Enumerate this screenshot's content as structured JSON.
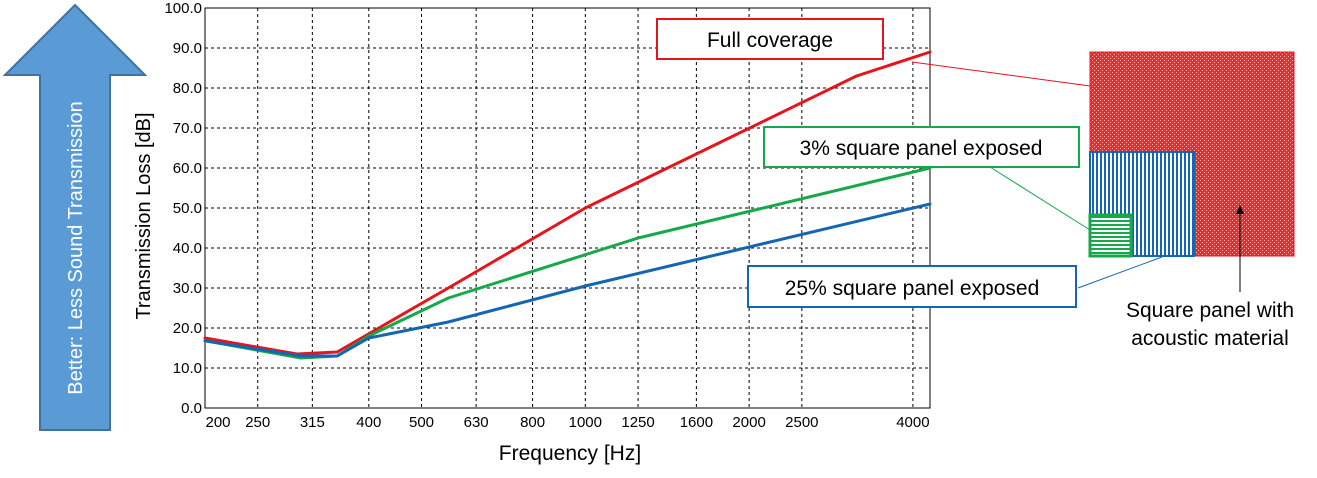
{
  "chart_data": {
    "type": "line",
    "title": "",
    "xlabel": "Frequency [Hz]",
    "ylabel": "Transmission Loss [dB]",
    "x_scale": "log",
    "xlim": [
      200,
      4300
    ],
    "ylim": [
      0,
      100
    ],
    "grid": true,
    "x_ticks": [
      "200",
      "250",
      "315",
      "400",
      "500",
      "630",
      "800",
      "1000",
      "1250",
      "1600",
      "2000",
      "2500",
      "4000"
    ],
    "y_ticks": [
      "0.0",
      "10.0",
      "20.0",
      "30.0",
      "40.0",
      "50.0",
      "60.0",
      "70.0",
      "80.0",
      "90.0",
      "100.0"
    ],
    "series": [
      {
        "name": "Full coverage",
        "color": "#e8141c",
        "points": [
          [
            200,
            17.5
          ],
          [
            295,
            13.5
          ],
          [
            350,
            14
          ],
          [
            560,
            30
          ],
          [
            1000,
            50
          ],
          [
            3150,
            83
          ],
          [
            4300,
            89
          ]
        ]
      },
      {
        "name": "3% square panel exposed",
        "color": "#16a84a",
        "points": [
          [
            200,
            16.8
          ],
          [
            300,
            12.5
          ],
          [
            350,
            13
          ],
          [
            400,
            18
          ],
          [
            560,
            27.5
          ],
          [
            1250,
            42.5
          ],
          [
            4300,
            60
          ]
        ]
      },
      {
        "name": "25% square panel exposed",
        "color": "#1466b4",
        "points": [
          [
            200,
            16.8
          ],
          [
            300,
            13
          ],
          [
            350,
            13
          ],
          [
            400,
            17.5
          ],
          [
            560,
            21.5
          ],
          [
            1000,
            30.5
          ],
          [
            4300,
            51
          ]
        ]
      }
    ],
    "arrow_label": "Better: Less Sound Transmission",
    "legend_boxes": {
      "full": "Full coverage",
      "three": "3% square panel exposed",
      "twentyfive": "25% square panel exposed"
    },
    "panel_caption_line1": "Square panel with",
    "panel_caption_line2": "acoustic material",
    "colors": {
      "arrow_fill": "#5b9bd5",
      "arrow_stroke": "#41719c",
      "panel_red": "#f01c1c",
      "panel_blue": "#1466b4",
      "panel_green": "#16a84a"
    }
  }
}
